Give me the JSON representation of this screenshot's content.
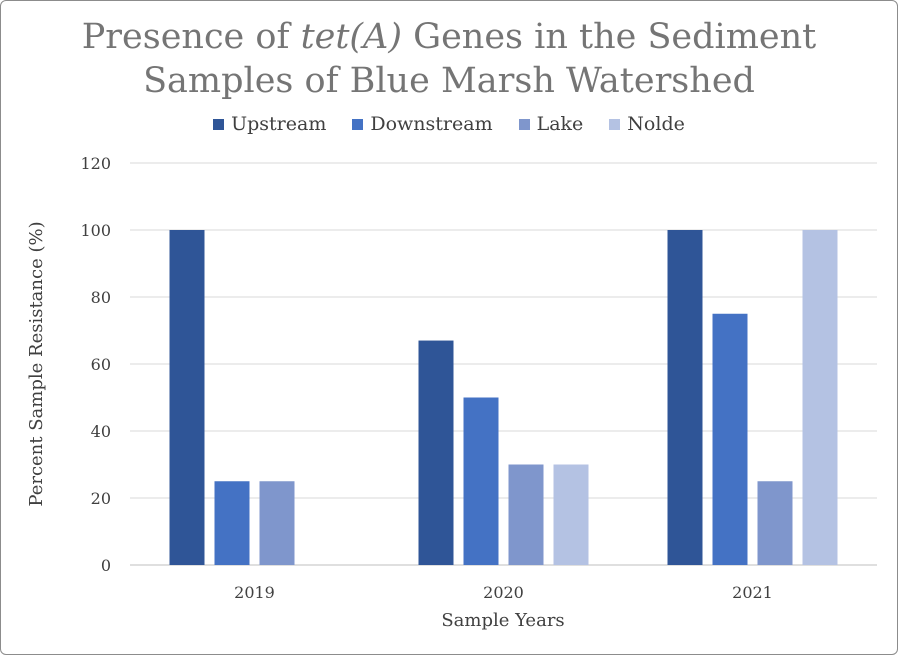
{
  "chart_data": {
    "type": "bar",
    "title_line1_prefix": "Presence of ",
    "title_line1_italic": "tet(A)",
    "title_line1_suffix": " Genes in the Sediment",
    "title_line2": "Samples of Blue Marsh Watershed",
    "xlabel": "Sample Years",
    "ylabel": "Percent Sample Resistance (%)",
    "ylim": [
      0,
      120
    ],
    "yticks": [
      "0",
      "20",
      "40",
      "60",
      "80",
      "100",
      "120"
    ],
    "grid": true,
    "legend_position": "top",
    "categories": [
      "2019",
      "2020",
      "2021"
    ],
    "series": [
      {
        "name": "Upstream",
        "color": "#2f5597",
        "values": [
          100,
          67,
          100
        ]
      },
      {
        "name": "Downstream",
        "color": "#4472c4",
        "values": [
          25,
          50,
          75
        ]
      },
      {
        "name": "Lake",
        "color": "#7f96cc",
        "values": [
          25,
          30,
          25
        ]
      },
      {
        "name": "Nolde",
        "color": "#b4c2e3",
        "values": [
          0,
          30,
          100
        ]
      }
    ]
  }
}
